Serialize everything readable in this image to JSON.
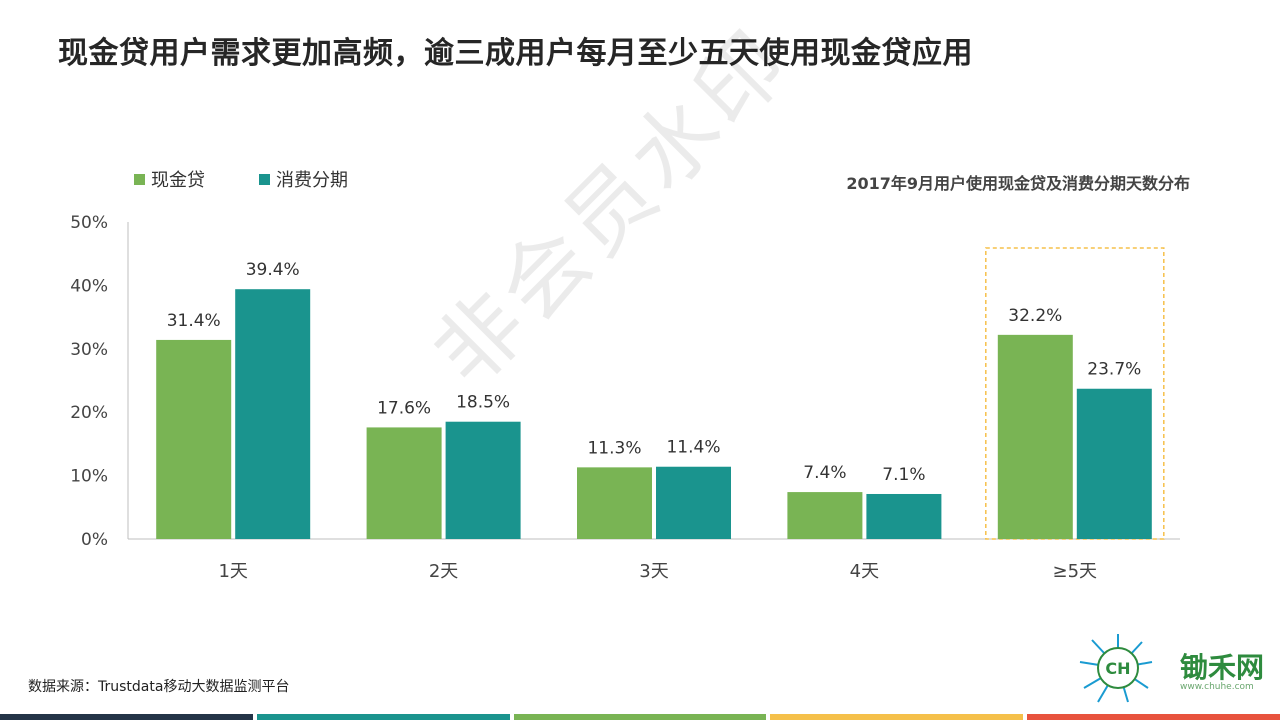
{
  "page": {
    "title": "现金贷用户需求更加高频，逾三成用户每月至少五天使用现金贷应用",
    "source": "数据来源：Trustdata移动大数据监测平台",
    "watermark": "非会员水印",
    "logo": {
      "name": "锄禾网",
      "url": "www.chuhe.com",
      "icon": "chuhe-logo-icon"
    },
    "bottom_bar_colors": [
      "#243447",
      "#1a948e",
      "#79b454",
      "#f5c04a",
      "#e8533d"
    ]
  },
  "colors": {
    "series_1": "#79b454",
    "series_2": "#1a948e",
    "highlight_box": "#f5c04a",
    "axis": "#bfbfbf"
  },
  "chart_data": {
    "type": "bar",
    "title": "2017年9月用户使用现金贷及消费分期天数分布",
    "xlabel": "",
    "ylabel": "",
    "categories": [
      "1天",
      "2天",
      "3天",
      "4天",
      "≥5天"
    ],
    "series": [
      {
        "name": "现金贷",
        "values": [
          31.4,
          17.6,
          11.3,
          7.4,
          32.2
        ]
      },
      {
        "name": "消费分期",
        "values": [
          39.4,
          18.5,
          11.4,
          7.1,
          23.7
        ]
      }
    ],
    "value_labels": [
      [
        "31.4%",
        "17.6%",
        "11.3%",
        "7.4%",
        "32.2%"
      ],
      [
        "39.4%",
        "18.5%",
        "11.4%",
        "7.1%",
        "23.7%"
      ]
    ],
    "ylim": [
      0,
      50
    ],
    "yticks": [
      0,
      10,
      20,
      30,
      40,
      50
    ],
    "ytick_labels": [
      "0%",
      "10%",
      "20%",
      "30%",
      "40%",
      "50%"
    ],
    "legend_position": "top-left",
    "grid": false,
    "highlighted_category": "≥5天"
  }
}
